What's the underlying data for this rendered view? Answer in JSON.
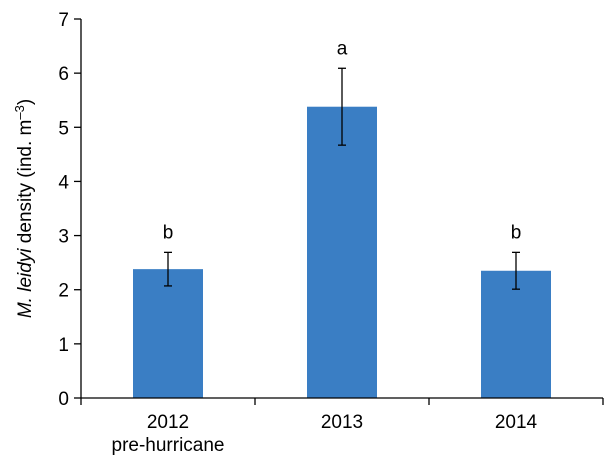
{
  "chart_data": {
    "type": "bar",
    "categories": [
      "2012",
      "2013",
      "2014"
    ],
    "category_sublabels": [
      "pre-hurricane",
      "",
      ""
    ],
    "values": [
      2.38,
      5.38,
      2.35
    ],
    "error": [
      0.31,
      0.71,
      0.34
    ],
    "significance_letters": [
      "b",
      "a",
      "b"
    ],
    "ylabel": {
      "italic": "M. leidyi",
      "text": " density (ind. m",
      "superscript": "–3",
      "close": ")"
    },
    "xlabel": "",
    "ylim": [
      0,
      7
    ],
    "yticks": [
      "0",
      "1",
      "2",
      "3",
      "4",
      "5",
      "6",
      "7"
    ],
    "grid": false,
    "bar_color": "#3a7ec4"
  }
}
